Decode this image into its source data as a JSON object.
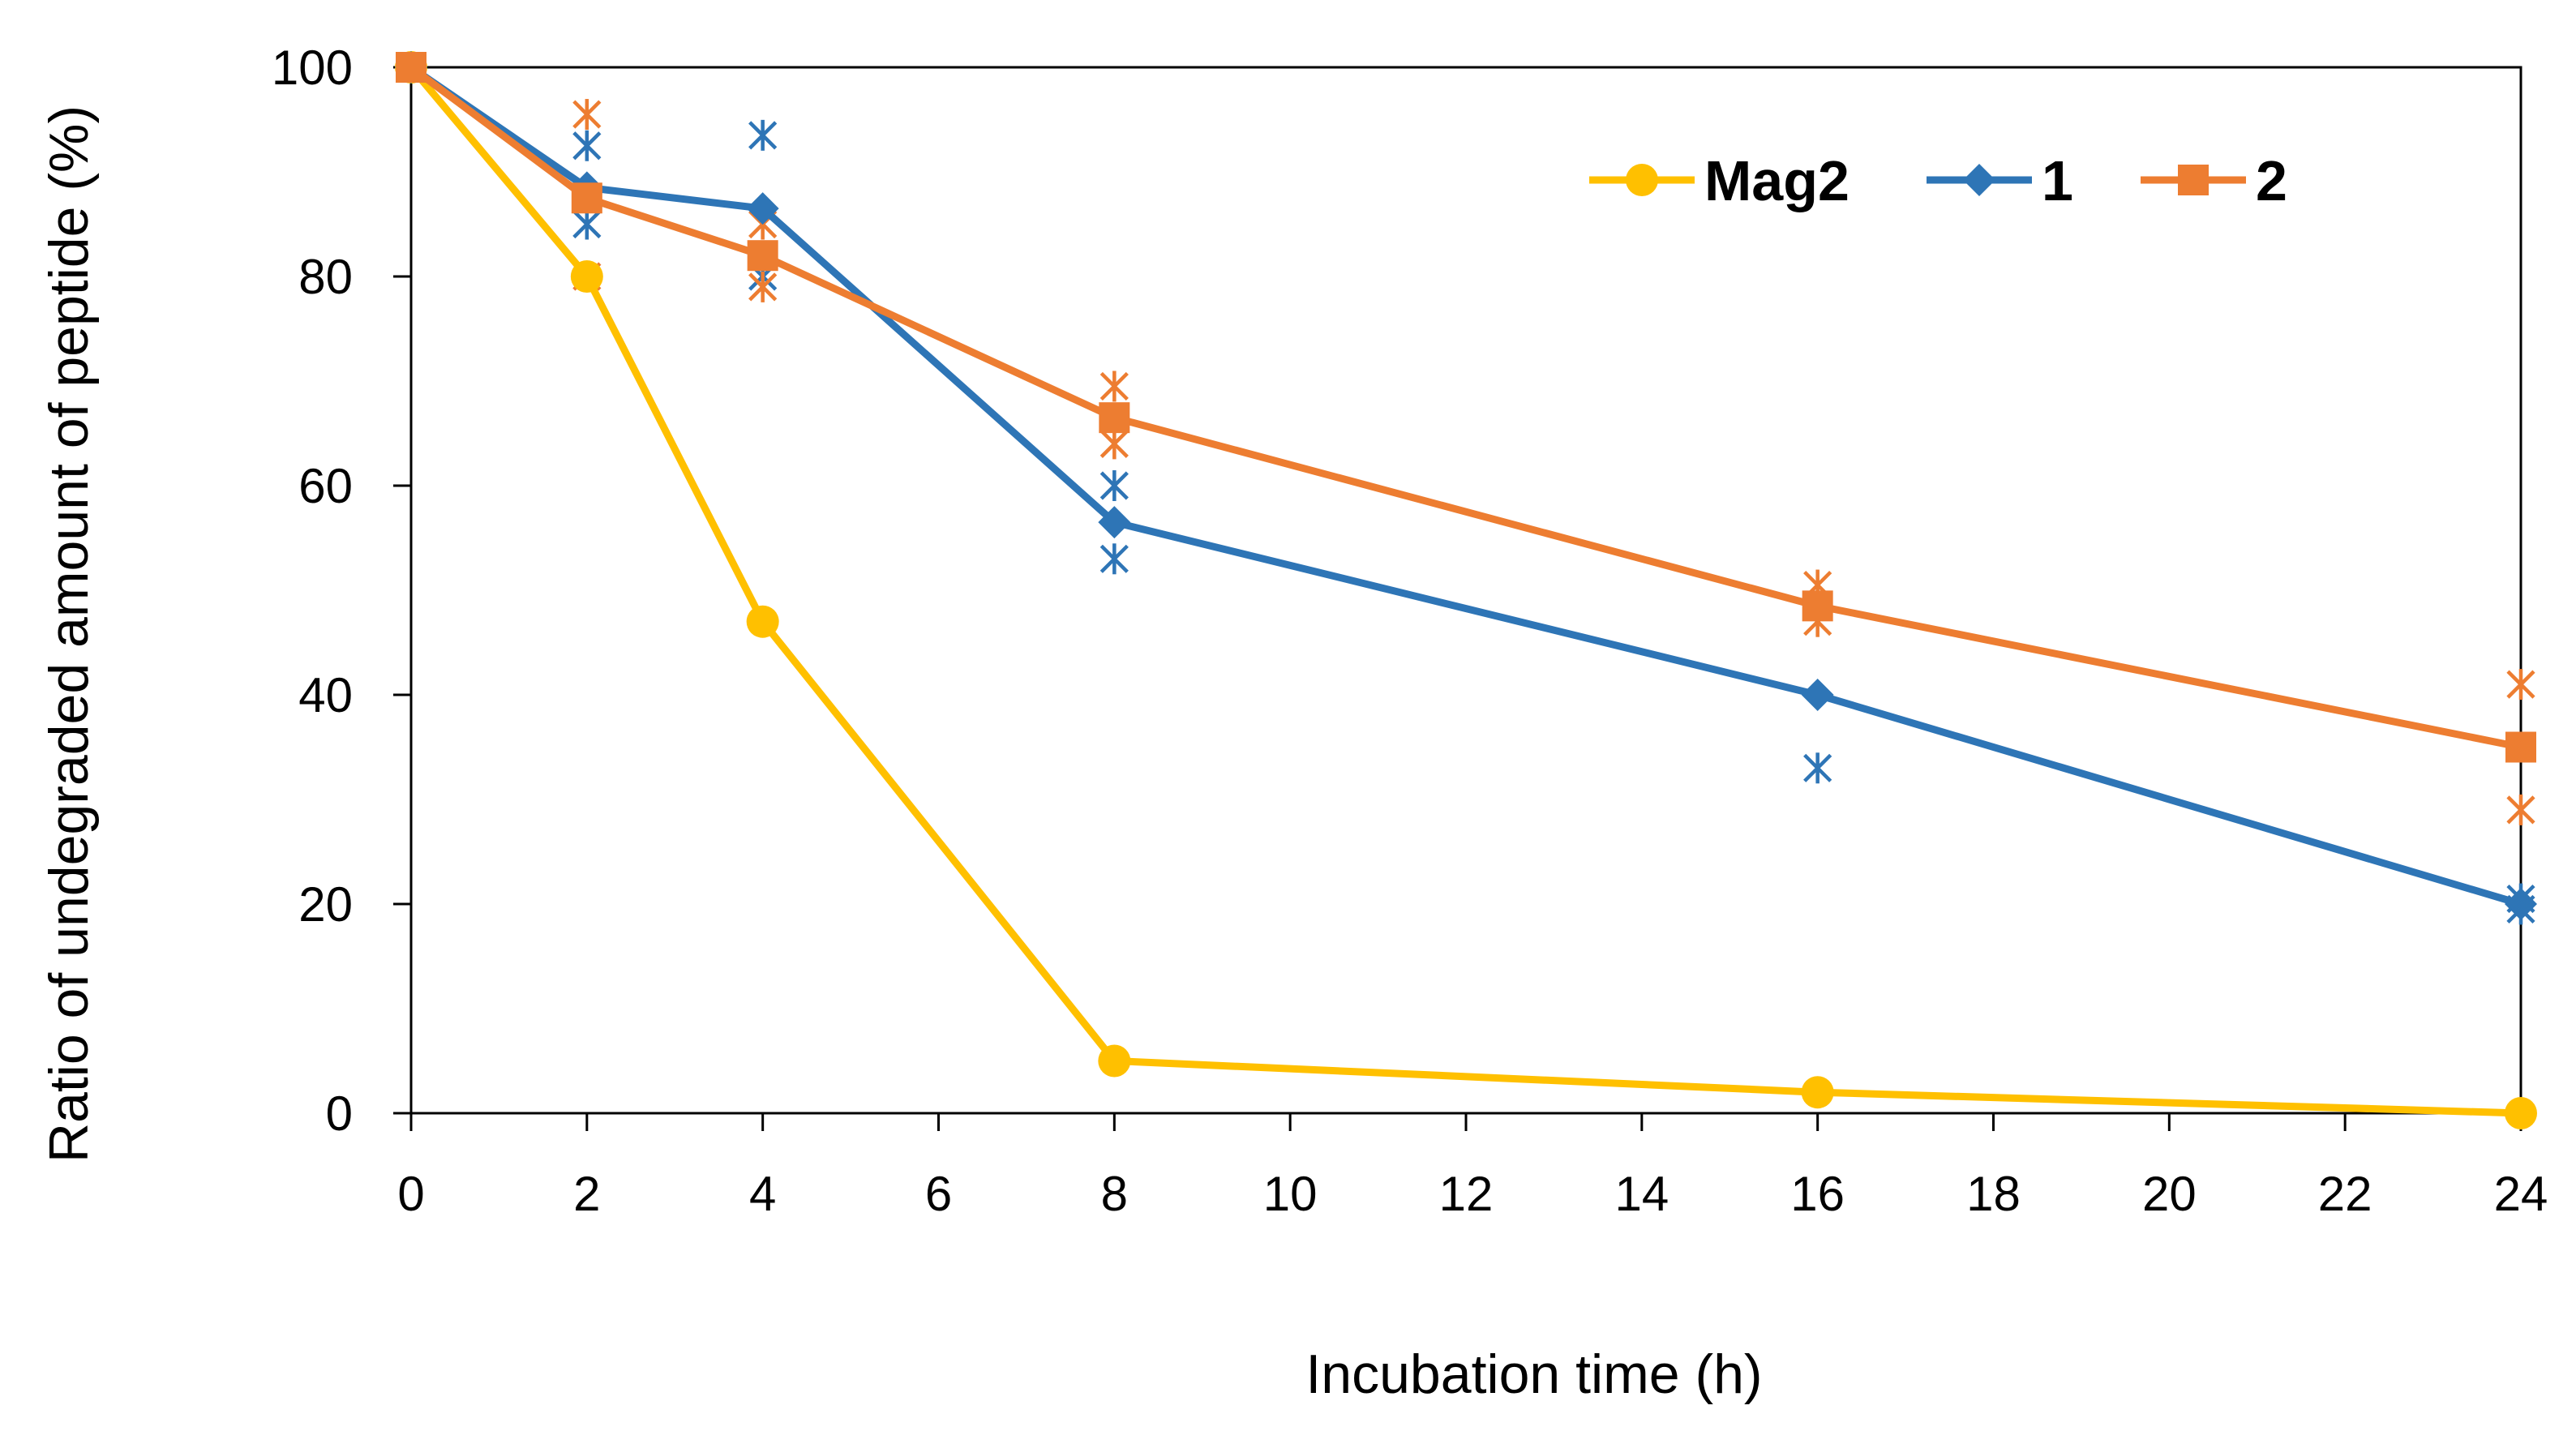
{
  "chart_data": {
    "type": "line",
    "title": "",
    "xlabel": "Incubation time (h)",
    "ylabel": "Ratio of undegraded amount of peptide (%)",
    "xlim": [
      0,
      24
    ],
    "ylim": [
      0,
      100
    ],
    "x_ticks": [
      0,
      2,
      4,
      6,
      8,
      10,
      12,
      14,
      16,
      18,
      20,
      22,
      24
    ],
    "y_ticks": [
      0,
      20,
      40,
      60,
      80,
      100
    ],
    "x_tick_labels": [
      "0",
      "2",
      "4",
      "6",
      "8",
      "10",
      "12",
      "14",
      "16",
      "18",
      "20",
      "22",
      "24"
    ],
    "y_tick_labels": [
      "0",
      "20",
      "40",
      "60",
      "80",
      "100"
    ],
    "grid": false,
    "legend_position": "top-right",
    "series": [
      {
        "name": "Mag2",
        "color": "#FFC000",
        "marker": "circle",
        "x": [
          0,
          2,
          4,
          8,
          16,
          24
        ],
        "values": [
          100,
          80,
          47,
          5,
          2,
          0
        ],
        "replicates": []
      },
      {
        "name": "1",
        "color": "#2E75B6",
        "marker": "diamond",
        "x": [
          0,
          2,
          4,
          8,
          16,
          24
        ],
        "values": [
          100,
          88.5,
          86.5,
          56.5,
          40,
          20
        ],
        "replicates": [
          {
            "x": 2,
            "y": 92.5
          },
          {
            "x": 2,
            "y": 85
          },
          {
            "x": 4,
            "y": 93.5
          },
          {
            "x": 4,
            "y": 80
          },
          {
            "x": 8,
            "y": 60
          },
          {
            "x": 8,
            "y": 53
          },
          {
            "x": 16,
            "y": 33
          },
          {
            "x": 24,
            "y": 20.5
          },
          {
            "x": 24,
            "y": 19.5
          }
        ]
      },
      {
        "name": "2",
        "color": "#ED7D31",
        "marker": "square",
        "x": [
          0,
          2,
          4,
          8,
          16,
          24
        ],
        "values": [
          100,
          87.5,
          82,
          66.5,
          48.5,
          35
        ],
        "replicates": [
          {
            "x": 2,
            "y": 95.5
          },
          {
            "x": 2,
            "y": 80
          },
          {
            "x": 4,
            "y": 85
          },
          {
            "x": 4,
            "y": 79
          },
          {
            "x": 8,
            "y": 69.5
          },
          {
            "x": 8,
            "y": 64
          },
          {
            "x": 16,
            "y": 50.5
          },
          {
            "x": 16,
            "y": 47
          },
          {
            "x": 24,
            "y": 41
          },
          {
            "x": 24,
            "y": 29
          }
        ]
      }
    ]
  }
}
